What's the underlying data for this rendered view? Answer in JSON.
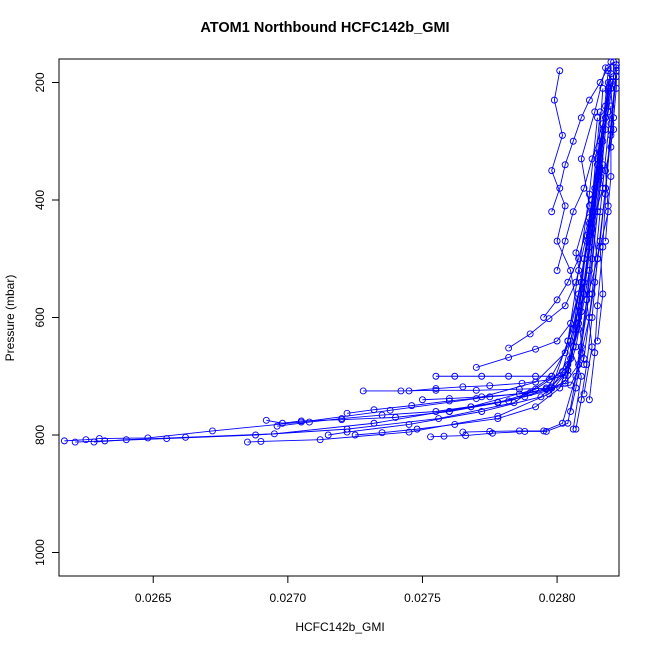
{
  "chart_data": {
    "type": "line",
    "title": "ATOM1 Northbound HCFC142b_GMI",
    "xlabel": "HCFC142b_GMI",
    "ylabel": "Pressure (mbar)",
    "xlim": [
      0.02615,
      0.02823
    ],
    "ylim": [
      1040,
      160
    ],
    "y_reversed": true,
    "x_ticks": [
      0.0265,
      0.027,
      0.0275,
      0.028
    ],
    "x_tick_labels": [
      "0.0265",
      "0.0270",
      "0.0275",
      "0.0280"
    ],
    "y_ticks": [
      200,
      400,
      600,
      800,
      1000
    ],
    "y_tick_labels": [
      "200",
      "400",
      "600",
      "800",
      "1000"
    ],
    "series_color": "#0000ff",
    "marker": "open-circle",
    "series": [
      {
        "x": [
          0.02617,
          0.02625,
          0.0263,
          0.02648,
          0.02672,
          0.02705,
          0.02738,
          0.0277,
          0.02792,
          0.02803,
          0.02808,
          0.02812,
          0.02815,
          0.02818,
          0.0282
        ],
        "y": [
          810,
          808,
          806,
          805,
          793,
          778,
          758,
          738,
          710,
          660,
          560,
          460,
          360,
          260,
          165
        ]
      },
      {
        "x": [
          0.02621,
          0.02632,
          0.02655,
          0.02688,
          0.02722,
          0.02756,
          0.02784,
          0.02798,
          0.02805,
          0.0281,
          0.02813,
          0.02816,
          0.02819
        ],
        "y": [
          812,
          810,
          806,
          800,
          790,
          772,
          745,
          700,
          640,
          540,
          430,
          320,
          200
        ]
      },
      {
        "x": [
          0.02628,
          0.0264,
          0.02662,
          0.02695,
          0.02732,
          0.02768,
          0.02792,
          0.02802,
          0.02806,
          0.0281,
          0.02814,
          0.02818
        ],
        "y": [
          812,
          808,
          804,
          798,
          780,
          752,
          722,
          692,
          620,
          500,
          380,
          240
        ]
      },
      {
        "x": [
          0.02685,
          0.0269,
          0.02712,
          0.02745,
          0.02778,
          0.02797,
          0.02804,
          0.02808,
          0.02811,
          0.02815,
          0.02817
        ],
        "y": [
          812,
          811,
          808,
          795,
          768,
          730,
          690,
          600,
          470,
          340,
          210
        ]
      },
      {
        "x": [
          0.02692,
          0.02698,
          0.02705,
          0.0272,
          0.0274,
          0.0276,
          0.02782,
          0.02798,
          0.02804,
          0.02808,
          0.02812,
          0.02815
        ],
        "y": [
          775,
          780,
          776,
          774,
          770,
          760,
          742,
          720,
          640,
          520,
          390,
          260
        ]
      },
      {
        "x": [
          0.02696,
          0.02708,
          0.0272,
          0.02735,
          0.02755,
          0.02778,
          0.02796,
          0.02805,
          0.0281,
          0.02814,
          0.02817
        ],
        "y": [
          785,
          778,
          772,
          766,
          760,
          745,
          720,
          670,
          560,
          420,
          280
        ]
      },
      {
        "x": [
          0.02715,
          0.02722,
          0.02745,
          0.02772,
          0.02794,
          0.02804,
          0.02809,
          0.02813,
          0.02816,
          0.02819
        ],
        "y": [
          800,
          795,
          782,
          760,
          735,
          690,
          590,
          450,
          320,
          180
        ]
      },
      {
        "x": [
          0.02725,
          0.02735,
          0.02748,
          0.02762,
          0.02778,
          0.02792,
          0.02801,
          0.02806,
          0.02809,
          0.02813,
          0.02816
        ],
        "y": [
          800,
          796,
          790,
          782,
          772,
          752,
          720,
          650,
          540,
          400,
          250
        ]
      },
      {
        "x": [
          0.02722,
          0.02732,
          0.02746,
          0.0276,
          0.02775,
          0.0279,
          0.02798,
          0.02804,
          0.02808,
          0.02812,
          0.02816
        ],
        "y": [
          763,
          757,
          750,
          742,
          735,
          728,
          718,
          680,
          580,
          440,
          300
        ]
      },
      {
        "x": [
          0.02728,
          0.02742,
          0.02755,
          0.0277,
          0.02786,
          0.02798,
          0.02805,
          0.0281,
          0.02813,
          0.02816,
          0.0282
        ],
        "y": [
          725,
          725,
          724,
          724,
          722,
          720,
          715,
          670,
          560,
          420,
          240
        ]
      },
      {
        "x": [
          0.02745,
          0.02755,
          0.02765,
          0.02775,
          0.02787,
          0.02797,
          0.02803,
          0.02808,
          0.02812,
          0.02816
        ],
        "y": [
          725,
          721,
          718,
          716,
          712,
          706,
          698,
          620,
          480,
          330
        ]
      },
      {
        "x": [
          0.02755,
          0.02762,
          0.02772,
          0.02782,
          0.02792,
          0.02798,
          0.02804,
          0.02808,
          0.02812,
          0.02816,
          0.02819
        ],
        "y": [
          700,
          700,
          700,
          700,
          700,
          700,
          698,
          610,
          480,
          350,
          210
        ]
      },
      {
        "x": [
          0.0275,
          0.0276,
          0.02772,
          0.02786,
          0.02796,
          0.02803,
          0.02808,
          0.02812,
          0.02815,
          0.02818
        ],
        "y": [
          740,
          738,
          735,
          730,
          722,
          712,
          680,
          560,
          420,
          280
        ]
      },
      {
        "x": [
          0.02753,
          0.02758,
          0.02766,
          0.02776,
          0.02788,
          0.02796,
          0.02804,
          0.02809,
          0.02813,
          0.02817
        ],
        "y": [
          803,
          802,
          801,
          797,
          794,
          794,
          780,
          650,
          500,
          340
        ]
      },
      {
        "x": [
          0.02765,
          0.02775,
          0.02786,
          0.02795,
          0.02802,
          0.02807,
          0.02811,
          0.02814,
          0.02818
        ],
        "y": [
          795,
          794,
          793,
          793,
          780,
          700,
          570,
          420,
          260
        ]
      },
      {
        "x": [
          0.0276,
          0.02768,
          0.02778,
          0.02788,
          0.02797,
          0.02803,
          0.02807,
          0.02812,
          0.02816,
          0.0282
        ],
        "y": [
          760,
          752,
          744,
          735,
          724,
          708,
          650,
          520,
          360,
          200
        ]
      },
      {
        "x": [
          0.0277,
          0.02782,
          0.02792,
          0.028,
          0.02805,
          0.02809,
          0.02813,
          0.02817,
          0.0282
        ],
        "y": [
          685,
          668,
          654,
          640,
          610,
          540,
          420,
          300,
          185
        ]
      },
      {
        "x": [
          0.02782,
          0.0279,
          0.02797,
          0.02803,
          0.02807,
          0.02811,
          0.02815,
          0.02819
        ],
        "y": [
          652,
          628,
          602,
          580,
          540,
          460,
          340,
          210
        ]
      },
      {
        "x": [
          0.02795,
          0.028,
          0.02804,
          0.02808,
          0.02812,
          0.02815,
          0.02819
        ],
        "y": [
          600,
          570,
          540,
          500,
          430,
          330,
          215
        ]
      },
      {
        "x": [
          0.02798,
          0.02801,
          0.02803,
          0.02806,
          0.02809,
          0.02812,
          0.02816,
          0.02819,
          0.02821
        ],
        "y": [
          420,
          380,
          340,
          300,
          260,
          230,
          200,
          175,
          165
        ]
      },
      {
        "x": [
          0.028,
          0.02803,
          0.02806,
          0.0281,
          0.02813,
          0.02817,
          0.0282,
          0.02822
        ],
        "y": [
          520,
          470,
          420,
          380,
          330,
          270,
          210,
          170
        ]
      },
      {
        "x": [
          0.02805,
          0.02807,
          0.02809,
          0.02812,
          0.02814,
          0.02816,
          0.02818,
          0.0282,
          0.02822
        ],
        "y": [
          760,
          720,
          660,
          600,
          540,
          470,
          380,
          290,
          180
        ]
      },
      {
        "x": [
          0.02807,
          0.02809,
          0.02811,
          0.02813,
          0.02815,
          0.02818,
          0.0282,
          0.02822
        ],
        "y": [
          790,
          740,
          680,
          600,
          500,
          380,
          270,
          175
        ]
      },
      {
        "x": [
          0.02812,
          0.02814,
          0.02815,
          0.02817,
          0.02818,
          0.0282,
          0.02822
        ],
        "y": [
          740,
          660,
          580,
          480,
          390,
          280,
          190
        ]
      },
      {
        "x": [
          0.02801,
          0.02799,
          0.02802,
          0.02798,
          0.02803,
          0.028,
          0.02805,
          0.02808,
          0.0281
        ],
        "y": [
          180,
          230,
          290,
          350,
          410,
          470,
          520,
          600,
          680
        ]
      },
      {
        "x": [
          0.02806,
          0.02809,
          0.02804,
          0.0281,
          0.02807,
          0.02812,
          0.02809,
          0.02814,
          0.02818
        ],
        "y": [
          790,
          700,
          640,
          560,
          490,
          410,
          330,
          250,
          175
        ]
      },
      {
        "x": [
          0.0281,
          0.02813,
          0.02811,
          0.02815,
          0.02813,
          0.02817,
          0.02815,
          0.02819,
          0.02821
        ],
        "y": [
          730,
          650,
          570,
          500,
          440,
          380,
          320,
          250,
          190
        ]
      },
      {
        "x": [
          0.02815,
          0.02817,
          0.02816,
          0.02819,
          0.02818,
          0.02821,
          0.0282
        ],
        "y": [
          640,
          560,
          480,
          420,
          350,
          280,
          210
        ]
      },
      {
        "x": [
          0.02818,
          0.02819,
          0.0282,
          0.0282,
          0.02821,
          0.02822,
          0.02822
        ],
        "y": [
          470,
          410,
          360,
          310,
          260,
          210,
          170
        ]
      }
    ]
  }
}
